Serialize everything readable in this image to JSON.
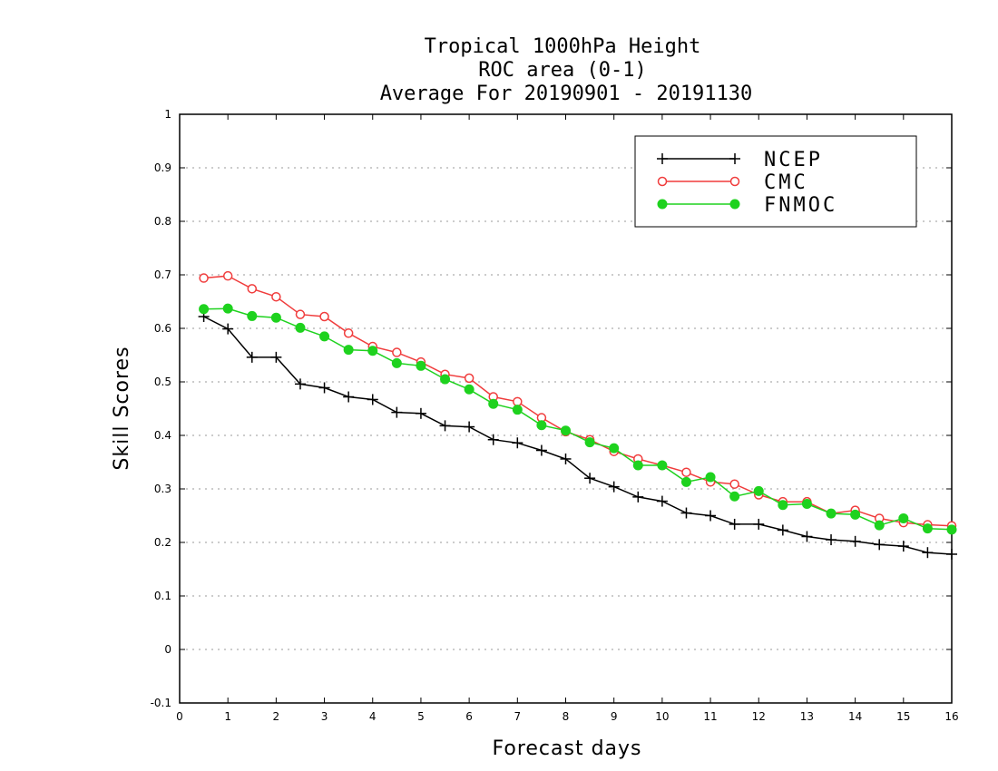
{
  "chart_data": {
    "type": "line",
    "title_lines": [
      "Tropical 1000hPa Height",
      "ROC area (0-1)",
      "Average For 20190901 - 20191130"
    ],
    "xlabel": "Forecast days",
    "ylabel": "Skill Scores",
    "xlim": [
      0,
      16
    ],
    "ylim": [
      -0.1,
      1
    ],
    "x_ticks": [
      "0",
      "1",
      "2",
      "3",
      "4",
      "5",
      "6",
      "7",
      "8",
      "9",
      "10",
      "11",
      "12",
      "13",
      "14",
      "15",
      "16"
    ],
    "y_ticks": [
      "-0.1",
      "0",
      "0.1",
      "0.2",
      "0.3",
      "0.4",
      "0.5",
      "0.6",
      "0.7",
      "0.8",
      "0.9",
      "1"
    ],
    "grid": "horizontal dotted",
    "legend_position": "top-right",
    "x": [
      0.5,
      1,
      1.5,
      2,
      2.5,
      3,
      3.5,
      4,
      4.5,
      5,
      5.5,
      6,
      6.5,
      7,
      7.5,
      8,
      8.5,
      9,
      9.5,
      10,
      10.5,
      11,
      11.5,
      12,
      12.5,
      13,
      13.5,
      14,
      14.5,
      15,
      15.5,
      16
    ],
    "series": [
      {
        "name": "NCEP",
        "color": "#000000",
        "marker": "plus",
        "values": [
          0.622,
          0.599,
          0.546,
          0.546,
          0.496,
          0.489,
          0.472,
          0.467,
          0.443,
          0.441,
          0.418,
          0.416,
          0.392,
          0.386,
          0.372,
          0.356,
          0.32,
          0.304,
          0.285,
          0.277,
          0.255,
          0.25,
          0.234,
          0.234,
          0.223,
          0.211,
          0.205,
          0.202,
          0.196,
          0.193,
          0.181,
          0.178
        ]
      },
      {
        "name": "CMC",
        "color": "#f03c3c",
        "marker": "open-circle",
        "values": [
          0.694,
          0.698,
          0.674,
          0.659,
          0.626,
          0.622,
          0.591,
          0.566,
          0.555,
          0.537,
          0.514,
          0.507,
          0.472,
          0.463,
          0.433,
          0.407,
          0.392,
          0.37,
          0.356,
          0.344,
          0.331,
          0.313,
          0.309,
          0.289,
          0.276,
          0.276,
          0.254,
          0.26,
          0.245,
          0.237,
          0.233,
          0.231
        ]
      },
      {
        "name": "FNMOC",
        "color": "#1ed21e",
        "marker": "filled-circle",
        "values": [
          0.636,
          0.637,
          0.623,
          0.62,
          0.601,
          0.585,
          0.56,
          0.558,
          0.535,
          0.53,
          0.505,
          0.486,
          0.459,
          0.448,
          0.419,
          0.409,
          0.387,
          0.376,
          0.344,
          0.344,
          0.313,
          0.322,
          0.286,
          0.296,
          0.27,
          0.272,
          0.254,
          0.252,
          0.232,
          0.245,
          0.226,
          0.224
        ]
      }
    ]
  }
}
